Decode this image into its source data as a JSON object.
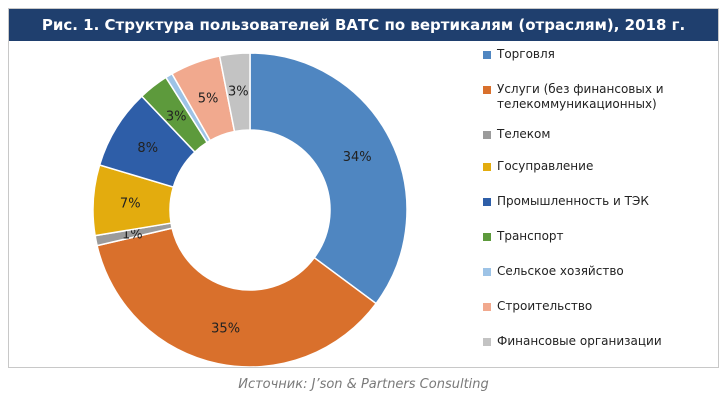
{
  "title": "Рис. 1. Структура пользователей ВАТС по вертикалям (отраслям), 2018 г.",
  "source": "Источник: J’son & Partners Consulting",
  "chart_data": {
    "type": "pie",
    "subtype": "donut",
    "title": "Рис. 1. Структура пользователей ВАТС по вертикалям (отраслям), 2018 г.",
    "legend_position": "right",
    "categories": [
      "Торговля",
      "Услуги (без финансовых и телекоммуникационных)",
      "Телеком",
      "Госуправление",
      "Промышленность и ТЭК",
      "Транспорт",
      "Сельское хозяйство",
      "Строительство",
      "Финансовые организации"
    ],
    "values": [
      34,
      35,
      1,
      7,
      8,
      3,
      0.7,
      5,
      3
    ],
    "labels": [
      "34%",
      "35%",
      "1%",
      "7%",
      "8%",
      "3%",
      "",
      "5%",
      "3%"
    ],
    "colors": [
      "#4f86c1",
      "#d9702c",
      "#9b9b9b",
      "#e3ac0e",
      "#2e5ea8",
      "#5d9a3c",
      "#9dc3e6",
      "#f1a98e",
      "#c3c3c3"
    ]
  }
}
